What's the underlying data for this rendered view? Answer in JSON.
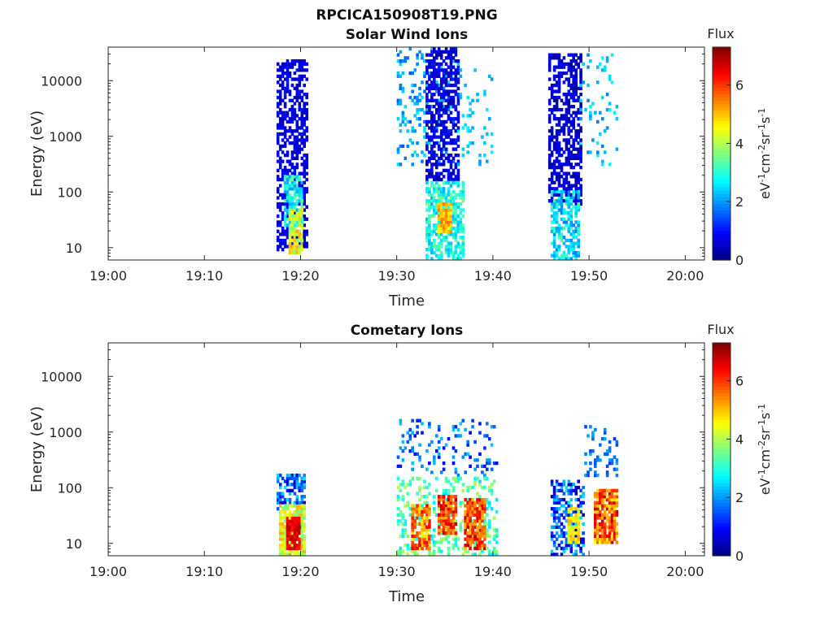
{
  "figure": {
    "title": "RPCICA150908T19.PNG"
  },
  "chart_data": [
    {
      "type": "heatmap",
      "title": "Solar Wind Ions",
      "xlabel": "Time",
      "ylabel": "Energy (eV)",
      "x_ticks": [
        "19:00",
        "19:10",
        "19:20",
        "19:30",
        "19:40",
        "19:50",
        "20:00"
      ],
      "x_range_minutes": [
        0,
        62
      ],
      "y_scale": "log",
      "y_ticks": [
        "10",
        "100",
        "1000",
        "10000"
      ],
      "y_range": [
        6,
        40000
      ],
      "colorbar": {
        "label": "Flux",
        "units": "eV-1cm-2sr-1s-1",
        "range": [
          0,
          7.3
        ],
        "ticks": [
          "0",
          "2",
          "4",
          "6"
        ],
        "colormap": "jet"
      },
      "blobs": [
        {
          "t": [
            17.5,
            20.6
          ],
          "e": [
            9,
            23000
          ],
          "flux": [
            0.3,
            1.1
          ],
          "density": 0.55
        },
        {
          "t": [
            18.2,
            20.0
          ],
          "e": [
            25,
            200
          ],
          "flux": [
            2.0,
            3.5
          ],
          "density": 0.7
        },
        {
          "t": [
            18.8,
            20.3
          ],
          "e": [
            8,
            50
          ],
          "flux": [
            3.5,
            5.2
          ],
          "density": 0.85
        },
        {
          "t": [
            30.0,
            36.0
          ],
          "e": [
            300,
            40000
          ],
          "flux": [
            1.5,
            2.6
          ],
          "density": 0.18
        },
        {
          "t": [
            33.0,
            36.5
          ],
          "e": [
            150,
            40000
          ],
          "flux": [
            0.2,
            1.2
          ],
          "density": 0.6
        },
        {
          "t": [
            33.0,
            37.0
          ],
          "e": [
            6,
            150
          ],
          "flux": [
            2.2,
            3.6
          ],
          "density": 0.65
        },
        {
          "t": [
            34.3,
            35.8
          ],
          "e": [
            18,
            60
          ],
          "flux": [
            4.5,
            5.6
          ],
          "density": 0.9
        },
        {
          "t": [
            36.0,
            40.0
          ],
          "e": [
            300,
            20000
          ],
          "flux": [
            2.0,
            2.7
          ],
          "density": 0.08
        },
        {
          "t": [
            45.8,
            49.3
          ],
          "e": [
            60,
            30000
          ],
          "flux": [
            0.2,
            1.0
          ],
          "density": 0.6
        },
        {
          "t": [
            46.0,
            49.0
          ],
          "e": [
            6,
            100
          ],
          "flux": [
            1.8,
            3.3
          ],
          "density": 0.6
        },
        {
          "t": [
            49.0,
            53.0
          ],
          "e": [
            300,
            30000
          ],
          "flux": [
            1.8,
            2.8
          ],
          "density": 0.1
        }
      ]
    },
    {
      "type": "heatmap",
      "title": "Cometary Ions",
      "xlabel": "Time",
      "ylabel": "Energy (eV)",
      "x_ticks": [
        "19:00",
        "19:10",
        "19:20",
        "19:30",
        "19:40",
        "19:50",
        "20:00"
      ],
      "x_range_minutes": [
        0,
        62
      ],
      "y_scale": "log",
      "y_ticks": [
        "10",
        "100",
        "1000",
        "10000"
      ],
      "y_range": [
        6,
        40000
      ],
      "colorbar": {
        "label": "Flux",
        "units": "eV-1cm-2sr-1s-1",
        "range": [
          0,
          7.3
        ],
        "ticks": [
          "0",
          "2",
          "4",
          "6"
        ],
        "colormap": "jet"
      },
      "blobs": [
        {
          "t": [
            17.5,
            20.3
          ],
          "e": [
            40,
            160
          ],
          "flux": [
            0.5,
            2.6
          ],
          "density": 0.55
        },
        {
          "t": [
            17.8,
            20.5
          ],
          "e": [
            6,
            50
          ],
          "flux": [
            3.5,
            5.2
          ],
          "density": 0.85
        },
        {
          "t": [
            18.6,
            20.0
          ],
          "e": [
            8,
            30
          ],
          "flux": [
            6.2,
            7.0
          ],
          "density": 0.95
        },
        {
          "t": [
            30.0,
            40.5
          ],
          "e": [
            150,
            1500
          ],
          "flux": [
            0.8,
            2.4
          ],
          "density": 0.15
        },
        {
          "t": [
            30.0,
            40.5
          ],
          "e": [
            6,
            150
          ],
          "flux": [
            2.5,
            4.0
          ],
          "density": 0.3
        },
        {
          "t": [
            31.5,
            33.5
          ],
          "e": [
            8,
            50
          ],
          "flux": [
            4.5,
            6.5
          ],
          "density": 0.75
        },
        {
          "t": [
            34.2,
            36.2
          ],
          "e": [
            15,
            70
          ],
          "flux": [
            5.0,
            7.0
          ],
          "density": 0.85
        },
        {
          "t": [
            37.0,
            39.2
          ],
          "e": [
            8,
            60
          ],
          "flux": [
            5.0,
            7.0
          ],
          "density": 0.85
        },
        {
          "t": [
            46.0,
            49.5
          ],
          "e": [
            6,
            130
          ],
          "flux": [
            0.2,
            2.6
          ],
          "density": 0.5
        },
        {
          "t": [
            47.8,
            49.0
          ],
          "e": [
            10,
            40
          ],
          "flux": [
            4.0,
            5.2
          ],
          "density": 0.8
        },
        {
          "t": [
            49.5,
            53.0
          ],
          "e": [
            150,
            1200
          ],
          "flux": [
            1.2,
            2.2
          ],
          "density": 0.2
        },
        {
          "t": [
            50.5,
            53.0
          ],
          "e": [
            10,
            90
          ],
          "flux": [
            4.5,
            7.0
          ],
          "density": 0.85
        }
      ]
    }
  ]
}
